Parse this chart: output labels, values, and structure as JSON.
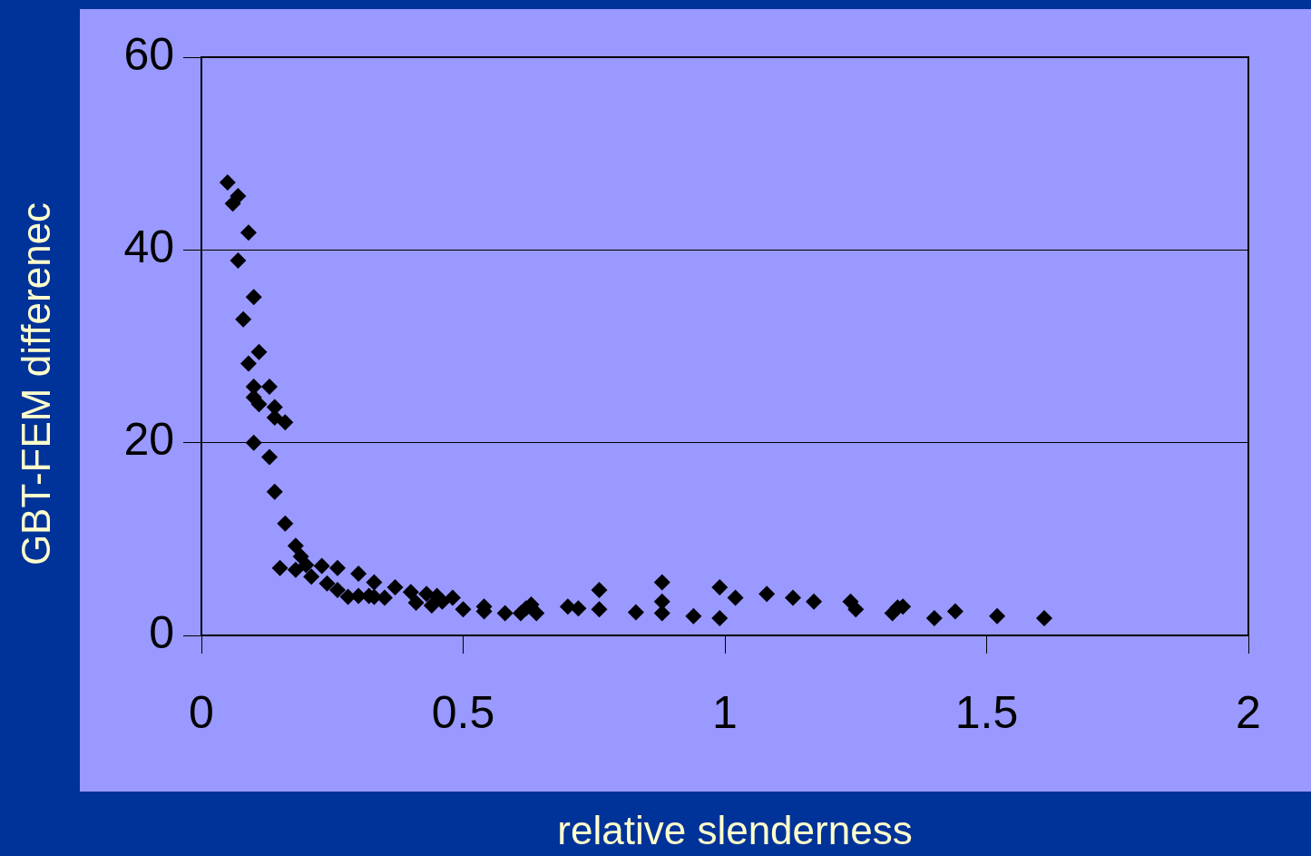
{
  "chart_data": {
    "type": "scatter",
    "xlabel": "relative slenderness",
    "ylabel": "GBT-FEM differenec",
    "x": [
      0.05,
      0.07,
      0.06,
      0.09,
      0.07,
      0.1,
      0.08,
      0.11,
      0.09,
      0.1,
      0.13,
      0.1,
      0.11,
      0.14,
      0.14,
      0.16,
      0.1,
      0.13,
      0.14,
      0.16,
      0.15,
      0.18,
      0.19,
      0.18,
      0.2,
      0.21,
      0.23,
      0.24,
      0.26,
      0.26,
      0.28,
      0.3,
      0.3,
      0.32,
      0.33,
      0.33,
      0.35,
      0.37,
      0.4,
      0.41,
      0.43,
      0.44,
      0.45,
      0.46,
      0.48,
      0.5,
      0.54,
      0.54,
      0.58,
      0.61,
      0.62,
      0.63,
      0.64,
      0.7,
      0.72,
      0.76,
      0.76,
      0.83,
      0.88,
      0.88,
      0.88,
      0.94,
      0.99,
      0.99,
      1.02,
      1.08,
      1.13,
      1.17,
      1.24,
      1.25,
      1.32,
      1.33,
      1.34,
      1.4,
      1.44,
      1.52,
      1.61
    ],
    "series": [
      {
        "color": "#000000",
        "values": [
          47.0,
          45.6,
          44.8,
          41.8,
          38.9,
          35.1,
          32.8,
          29.4,
          28.2,
          25.8,
          25.8,
          24.7,
          24.0,
          23.7,
          22.6,
          22.1,
          20.0,
          18.5,
          14.9,
          11.6,
          7.0,
          9.3,
          8.2,
          6.8,
          7.3,
          6.1,
          7.2,
          5.4,
          7.0,
          4.7,
          4.0,
          6.4,
          4.1,
          4.1,
          5.5,
          4.0,
          3.9,
          5.0,
          4.5,
          3.4,
          4.3,
          3.1,
          4.1,
          3.5,
          3.9,
          2.7,
          2.5,
          3.0,
          2.3,
          2.3,
          2.8,
          3.2,
          2.3,
          3.0,
          2.8,
          4.7,
          2.7,
          2.4,
          3.5,
          5.5,
          2.3,
          2.0,
          5.0,
          1.8,
          3.9,
          4.3,
          3.9,
          3.5,
          3.5,
          2.7,
          2.3,
          2.9,
          3.0,
          1.8,
          2.5,
          2.0,
          1.8
        ]
      }
    ],
    "xlim": [
      0,
      2
    ],
    "xticks": [
      0,
      0.5,
      1,
      1.5,
      2
    ],
    "ylim": [
      0,
      60
    ],
    "yticks": [
      0,
      20,
      40,
      60
    ],
    "grid": "y",
    "marker": "diamond",
    "legend": false
  }
}
